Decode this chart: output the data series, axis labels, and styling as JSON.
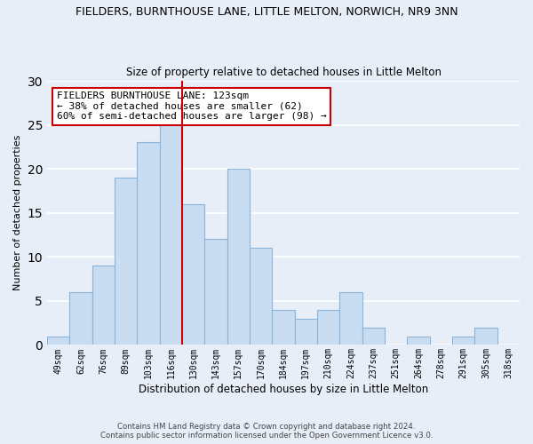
{
  "title": "FIELDERS, BURNTHOUSE LANE, LITTLE MELTON, NORWICH, NR9 3NN",
  "subtitle": "Size of property relative to detached houses in Little Melton",
  "xlabel": "Distribution of detached houses by size in Little Melton",
  "ylabel": "Number of detached properties",
  "bin_labels": [
    "49sqm",
    "62sqm",
    "76sqm",
    "89sqm",
    "103sqm",
    "116sqm",
    "130sqm",
    "143sqm",
    "157sqm",
    "170sqm",
    "184sqm",
    "197sqm",
    "210sqm",
    "224sqm",
    "237sqm",
    "251sqm",
    "264sqm",
    "278sqm",
    "291sqm",
    "305sqm",
    "318sqm"
  ],
  "bar_heights": [
    1,
    6,
    9,
    19,
    23,
    25,
    16,
    12,
    20,
    11,
    4,
    3,
    4,
    6,
    2,
    0,
    1,
    0,
    1,
    2,
    0
  ],
  "bar_color": "#c9ddf2",
  "bar_edge_color": "#8ab4d9",
  "vline_x": 5.5,
  "vline_color": "#cc0000",
  "ylim": [
    0,
    30
  ],
  "yticks": [
    0,
    5,
    10,
    15,
    20,
    25,
    30
  ],
  "annotation_title": "FIELDERS BURNTHOUSE LANE: 123sqm",
  "annotation_line1": "← 38% of detached houses are smaller (62)",
  "annotation_line2": "60% of semi-detached houses are larger (98) →",
  "annotation_box_color": "#ffffff",
  "annotation_box_edge": "#cc0000",
  "footer1": "Contains HM Land Registry data © Crown copyright and database right 2024.",
  "footer2": "Contains public sector information licensed under the Open Government Licence v3.0.",
  "bg_color": "#e8eef8",
  "grid_color": "#ffffff"
}
